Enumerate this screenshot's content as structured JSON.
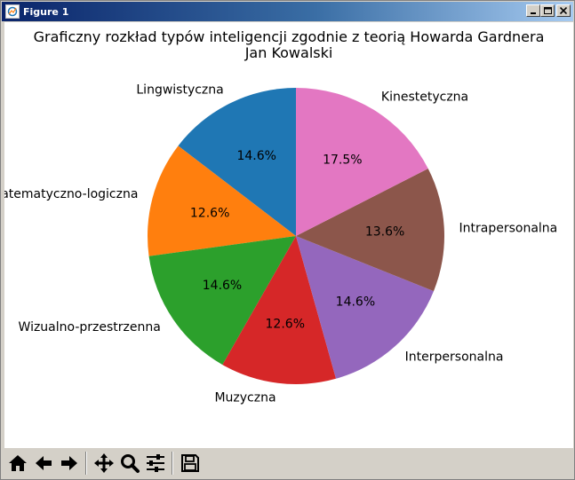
{
  "window": {
    "title": "Figure 1"
  },
  "toolbar": {
    "buttons": [
      {
        "icon": "home-icon"
      },
      {
        "icon": "back-icon"
      },
      {
        "icon": "forward-icon"
      },
      {
        "icon": "pan-icon"
      },
      {
        "icon": "zoom-icon"
      },
      {
        "icon": "configure-subplots-icon"
      },
      {
        "icon": "save-icon"
      }
    ]
  },
  "chart_data": {
    "type": "pie",
    "title": "Graficzny rozkład typów inteligencji zgodnie z teorią Howarda Gardnera",
    "subtitle": "Jan Kowalski",
    "start_angle_deg": 90,
    "direction": "counterclockwise",
    "slices": [
      {
        "label": "Lingwistyczna",
        "value": 14.6,
        "pct_label": "14.6%",
        "color": "#1f77b4"
      },
      {
        "label": "Matematyczno-logiczna",
        "value": 12.6,
        "pct_label": "12.6%",
        "color": "#ff7f0e"
      },
      {
        "label": "Wizualno-przestrzenna",
        "value": 14.6,
        "pct_label": "14.6%",
        "color": "#2ca02c"
      },
      {
        "label": "Muzyczna",
        "value": 12.6,
        "pct_label": "12.6%",
        "color": "#d62728"
      },
      {
        "label": "Interpersonalna",
        "value": 14.6,
        "pct_label": "14.6%",
        "color": "#9467bd"
      },
      {
        "label": "Intrapersonalna",
        "value": 13.6,
        "pct_label": "13.6%",
        "color": "#8c564b"
      },
      {
        "label": "Kinestetyczna",
        "value": 17.5,
        "pct_label": "17.5%",
        "color": "#e377c2"
      }
    ]
  }
}
